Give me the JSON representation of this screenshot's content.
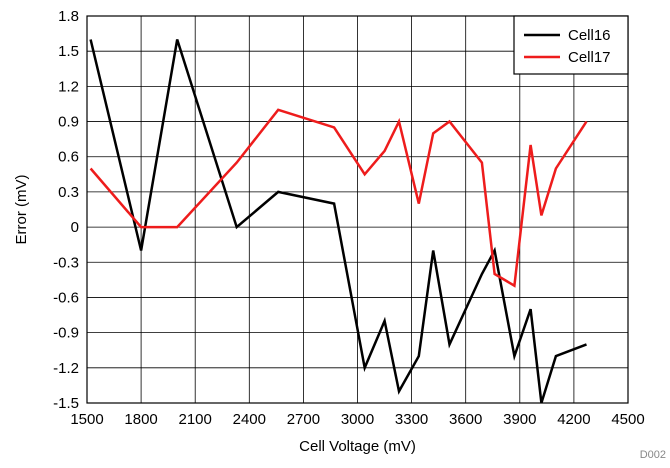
{
  "chart_data": {
    "type": "line",
    "xlabel": "Cell Voltage (mV)",
    "ylabel": "Error (mV)",
    "xlim": [
      1500,
      4500
    ],
    "ylim": [
      -1.5,
      1.8
    ],
    "x_ticks": [
      1500,
      1800,
      2100,
      2400,
      2700,
      3000,
      3300,
      3600,
      3900,
      4200,
      4500
    ],
    "x_tick_labels": [
      "1500",
      "1800",
      "2100",
      "2400",
      "2700",
      "3000",
      "3300",
      "3600",
      "3900",
      "4200",
      "4500"
    ],
    "y_ticks": [
      1.8,
      1.5,
      1.2,
      0.9,
      0.6,
      0.3,
      0,
      -0.3,
      -0.6,
      -0.9,
      -1.2,
      -1.5
    ],
    "y_tick_labels": [
      "1.8",
      "1.5",
      "1.2",
      "0.9",
      "0.6",
      "0.3",
      "0",
      "-0.3",
      "-0.6",
      "-0.9",
      "-1.2",
      "-1.5"
    ],
    "grid": true,
    "legend_position": "top-right",
    "figure_id": "D002",
    "series": [
      {
        "name": "Cell16",
        "color": "#000000",
        "x": [
          1520,
          1800,
          2000,
          2330,
          2560,
          2870,
          3040,
          3150,
          3230,
          3340,
          3420,
          3510,
          3690,
          3760,
          3870,
          3960,
          4020,
          4100,
          4270
        ],
        "y": [
          1.6,
          -0.2,
          1.6,
          0.0,
          0.3,
          0.2,
          -1.2,
          -0.8,
          -1.4,
          -1.1,
          -0.2,
          -1.0,
          -0.4,
          -0.2,
          -1.1,
          -0.7,
          -1.5,
          -1.1,
          -1.0
        ]
      },
      {
        "name": "Cell17",
        "color": "#ee1c1c",
        "x": [
          1520,
          1800,
          2000,
          2330,
          2560,
          2870,
          3040,
          3150,
          3230,
          3340,
          3420,
          3510,
          3690,
          3760,
          3870,
          3960,
          4020,
          4100,
          4270
        ],
        "y": [
          0.5,
          0.0,
          0.0,
          0.55,
          1.0,
          0.85,
          0.45,
          0.65,
          0.9,
          0.2,
          0.8,
          0.9,
          0.55,
          -0.4,
          -0.5,
          0.7,
          0.1,
          0.5,
          0.9
        ]
      }
    ]
  }
}
